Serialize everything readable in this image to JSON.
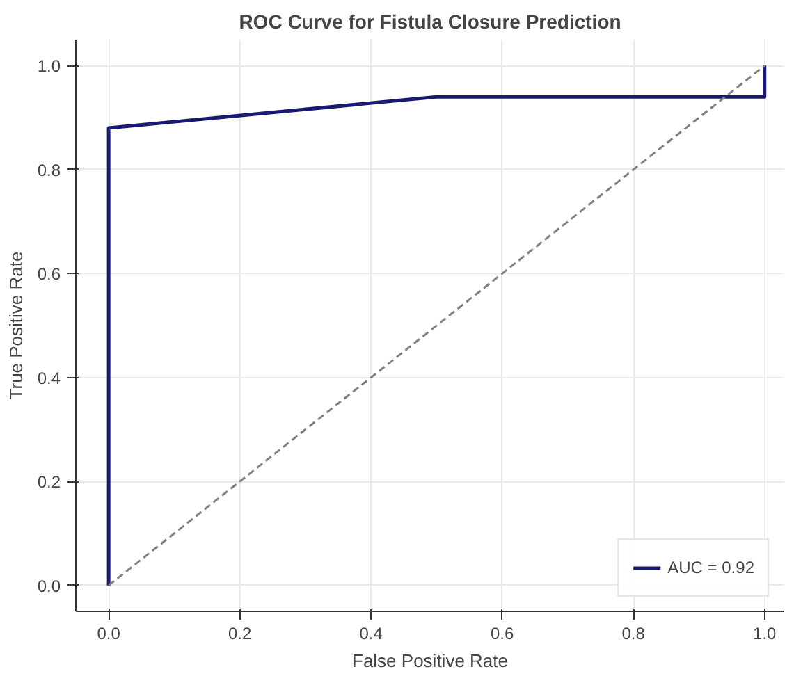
{
  "chart_data": {
    "type": "line",
    "title": "ROC Curve for Fistula Closure Prediction",
    "xlabel": "False Positive Rate",
    "ylabel": "True Positive Rate",
    "series": [
      {
        "name": "AUC = 0.92",
        "color": "#191970",
        "x": [
          0,
          0,
          0.5,
          1,
          1
        ],
        "values": [
          0,
          0.88,
          0.94,
          0.94,
          1
        ],
        "line_style": "solid"
      },
      {
        "type": "line",
        "color": "#808080",
        "x": [
          0,
          1
        ],
        "values": [
          0,
          1
        ],
        "line_style": "dashed"
      }
    ],
    "xlim": [
      -0.05,
      1.03
    ],
    "ylim": [
      -0.05,
      1.05
    ],
    "xticks": [
      {
        "value": 0,
        "label": "0.0"
      },
      0.2,
      0.4,
      0.6,
      0.8,
      {
        "value": 1,
        "label": "1.0"
      }
    ],
    "yticks": [
      {
        "value": 0,
        "label": "0.0"
      },
      0.2,
      0.4,
      0.6,
      0.8,
      {
        "value": 1,
        "label": "1.0"
      }
    ],
    "grid": true,
    "legend": "bottom right"
  }
}
